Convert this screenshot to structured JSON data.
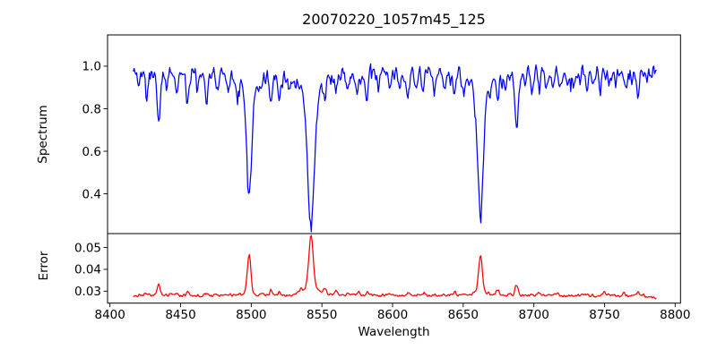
{
  "chart_data": {
    "type": "line",
    "title": "20070220_1057m45_125",
    "xlabel": "Wavelength",
    "grid": false,
    "legend": "none",
    "xlim": [
      8398.3,
      8803.8
    ],
    "x_tick_values": [
      8400,
      8450,
      8500,
      8550,
      8600,
      8650,
      8700,
      8750,
      8800
    ],
    "x_tick_labels": [
      "8400",
      "8450",
      "8500",
      "8550",
      "8600",
      "8650",
      "8700",
      "8750",
      "8800"
    ],
    "x_range_data": [
      8416.5,
      8787
    ],
    "x_step": 0.6,
    "panels": [
      {
        "name": "spectrum",
        "ylabel": "Spectrum",
        "color": "#0000ff",
        "ylim": [
          0.213,
          1.147
        ],
        "ytick_values": [
          1.0,
          0.8,
          0.6,
          0.4
        ],
        "ytick_labels": [
          "1.0",
          "0.8",
          "0.6",
          "0.4"
        ],
        "base": 0.975,
        "dir": -1,
        "noise_amp": 0.055,
        "spike_p": 0.06,
        "spike_a": 0.05,
        "seed": 11,
        "features": [
          {
            "c": 8420.5,
            "a": 0.05,
            "w": 0.8
          },
          {
            "c": 8426,
            "a": 0.12,
            "w": 1.0
          },
          {
            "c": 8434.6,
            "a": 0.22,
            "w": 1.2
          },
          {
            "c": 8440,
            "a": 0.07,
            "w": 0.9
          },
          {
            "c": 8447,
            "a": 0.1,
            "w": 1.0
          },
          {
            "c": 8455,
            "a": 0.13,
            "w": 1.1
          },
          {
            "c": 8462,
            "a": 0.08,
            "w": 0.9
          },
          {
            "c": 8468.5,
            "a": 0.11,
            "w": 1.0
          },
          {
            "c": 8476,
            "a": 0.07,
            "w": 0.9
          },
          {
            "c": 8484,
            "a": 0.06,
            "w": 0.8
          },
          {
            "c": 8490.5,
            "a": 0.06,
            "w": 0.8
          },
          {
            "c": 8498.5,
            "a": 0.445,
            "w": 1.7,
            "ba": 0.115,
            "bw": 5.5
          },
          {
            "c": 8507,
            "a": 0.05,
            "w": 0.8
          },
          {
            "c": 8514,
            "a": 0.125,
            "w": 1.0
          },
          {
            "c": 8519.5,
            "a": 0.08,
            "w": 0.9
          },
          {
            "c": 8527,
            "a": 0.07,
            "w": 0.9
          },
          {
            "c": 8542.3,
            "a": 0.565,
            "w": 2.3,
            "ba": 0.145,
            "bw": 7.5
          },
          {
            "c": 8552,
            "a": 0.07,
            "w": 0.9
          },
          {
            "c": 8560,
            "a": 0.06,
            "w": 0.9
          },
          {
            "c": 8568,
            "a": 0.07,
            "w": 0.9
          },
          {
            "c": 8575.5,
            "a": 0.08,
            "w": 0.9
          },
          {
            "c": 8581.5,
            "a": 0.11,
            "w": 1.0
          },
          {
            "c": 8590,
            "a": 0.07,
            "w": 0.9
          },
          {
            "c": 8598,
            "a": 0.09,
            "w": 1.0
          },
          {
            "c": 8605,
            "a": 0.07,
            "w": 0.9
          },
          {
            "c": 8610.5,
            "a": 0.13,
            "w": 1.0
          },
          {
            "c": 8617,
            "a": 0.07,
            "w": 0.9
          },
          {
            "c": 8621.5,
            "a": 0.11,
            "w": 1.0
          },
          {
            "c": 8630,
            "a": 0.06,
            "w": 0.9
          },
          {
            "c": 8637,
            "a": 0.07,
            "w": 0.9
          },
          {
            "c": 8644,
            "a": 0.09,
            "w": 1.0
          },
          {
            "c": 8650.5,
            "a": 0.08,
            "w": 0.9
          },
          {
            "c": 8662.2,
            "a": 0.535,
            "w": 2.0,
            "ba": 0.125,
            "bw": 6.0
          },
          {
            "c": 8669,
            "a": 0.06,
            "w": 0.8
          },
          {
            "c": 8674.5,
            "a": 0.09,
            "w": 0.9
          },
          {
            "c": 8680,
            "a": 0.07,
            "w": 0.9
          },
          {
            "c": 8687.8,
            "a": 0.265,
            "w": 1.3
          },
          {
            "c": 8694,
            "a": 0.06,
            "w": 0.9
          },
          {
            "c": 8698.5,
            "a": 0.08,
            "w": 0.9
          },
          {
            "c": 8703.5,
            "a": 0.06,
            "w": 0.9
          },
          {
            "c": 8709,
            "a": 0.09,
            "w": 0.9
          },
          {
            "c": 8713.5,
            "a": 0.06,
            "w": 0.8
          },
          {
            "c": 8718.5,
            "a": 0.08,
            "w": 0.9
          },
          {
            "c": 8724,
            "a": 0.06,
            "w": 0.9
          },
          {
            "c": 8728,
            "a": 0.07,
            "w": 0.9
          },
          {
            "c": 8733,
            "a": 0.06,
            "w": 0.8
          },
          {
            "c": 8737.5,
            "a": 0.09,
            "w": 0.9
          },
          {
            "c": 8743,
            "a": 0.06,
            "w": 0.9
          },
          {
            "c": 8747,
            "a": 0.08,
            "w": 0.9
          },
          {
            "c": 8753,
            "a": 0.06,
            "w": 0.9
          },
          {
            "c": 8758,
            "a": 0.06,
            "w": 0.9
          },
          {
            "c": 8765,
            "a": 0.07,
            "w": 0.9
          },
          {
            "c": 8769.5,
            "a": 0.06,
            "w": 0.8
          },
          {
            "c": 8773.5,
            "a": 0.12,
            "w": 1.0
          },
          {
            "c": 8780,
            "a": 0.06,
            "w": 0.9
          }
        ]
      },
      {
        "name": "error",
        "ylabel": "Error",
        "color": "#ff0000",
        "ylim": [
          0.0245,
          0.0564
        ],
        "ytick_values": [
          0.05,
          0.04,
          0.03
        ],
        "ytick_labels": [
          "0.05",
          "0.04",
          "0.03"
        ],
        "base": 0.028,
        "dir": 1,
        "noise_amp": 0.0012,
        "spike_p": 0,
        "spike_a": 0,
        "seed": 3,
        "ramp": {
          "x0": 8776,
          "dv": -0.0013
        },
        "features": [
          {
            "c": 8426,
            "a": 0.0012,
            "w": 1.0
          },
          {
            "c": 8434.6,
            "a": 0.0046,
            "w": 1.1
          },
          {
            "c": 8447,
            "a": 0.0012,
            "w": 0.9
          },
          {
            "c": 8455,
            "a": 0.0018,
            "w": 0.9
          },
          {
            "c": 8468.5,
            "a": 0.0013,
            "w": 0.9
          },
          {
            "c": 8498.5,
            "a": 0.0178,
            "w": 1.2,
            "ba": 0.0012,
            "bw": 4.0
          },
          {
            "c": 8514,
            "a": 0.0022,
            "w": 0.9
          },
          {
            "c": 8520,
            "a": 0.0015,
            "w": 0.9
          },
          {
            "c": 8535,
            "a": 0.0012,
            "w": 0.9
          },
          {
            "c": 8542.3,
            "a": 0.0215,
            "w": 1.5,
            "ba": 0.006,
            "bw": 4.5
          },
          {
            "c": 8552,
            "a": 0.0022,
            "w": 0.9
          },
          {
            "c": 8560,
            "a": 0.0017,
            "w": 0.9
          },
          {
            "c": 8568,
            "a": 0.0012,
            "w": 0.9
          },
          {
            "c": 8576,
            "a": 0.0017,
            "w": 0.9
          },
          {
            "c": 8582,
            "a": 0.0013,
            "w": 0.9
          },
          {
            "c": 8598,
            "a": 0.0011,
            "w": 0.9
          },
          {
            "c": 8611,
            "a": 0.0014,
            "w": 0.9
          },
          {
            "c": 8622,
            "a": 0.0012,
            "w": 0.9
          },
          {
            "c": 8644,
            "a": 0.0011,
            "w": 0.9
          },
          {
            "c": 8662.2,
            "a": 0.0158,
            "w": 1.3,
            "ba": 0.003,
            "bw": 4.0
          },
          {
            "c": 8674.5,
            "a": 0.0028,
            "w": 0.9
          },
          {
            "c": 8687.8,
            "a": 0.0048,
            "w": 1.1
          },
          {
            "c": 8703,
            "a": 0.001,
            "w": 0.9
          },
          {
            "c": 8717,
            "a": 0.0012,
            "w": 0.9
          },
          {
            "c": 8736,
            "a": 0.0012,
            "w": 0.9
          },
          {
            "c": 8750,
            "a": 0.0014,
            "w": 0.9
          },
          {
            "c": 8764,
            "a": 0.001,
            "w": 0.9
          },
          {
            "c": 8773.5,
            "a": 0.0019,
            "w": 0.9
          }
        ]
      }
    ],
    "notable_absorption_lines": [
      {
        "wavelength": 8498.5,
        "min_flux": 0.41,
        "note": "deep line"
      },
      {
        "wavelength": 8542.3,
        "min_flux": 0.26,
        "note": "deepest line"
      },
      {
        "wavelength": 8662.2,
        "min_flux": 0.31,
        "note": "deep line"
      },
      {
        "wavelength": 8687.8,
        "min_flux": 0.71,
        "note": "narrow line"
      }
    ],
    "error_peaks_summary": [
      {
        "wavelength": 8498.5,
        "max_error": 0.046
      },
      {
        "wavelength": 8542.3,
        "max_error": 0.0555
      },
      {
        "wavelength": 8662.2,
        "max_error": 0.047
      },
      {
        "wavelength": 8687.8,
        "max_error": 0.0327
      }
    ],
    "error_baseline": 0.028
  },
  "colors": {
    "axis": "#000000",
    "background": "#ffffff",
    "spectrum_line": "#0000ff",
    "error_line": "#ff0000"
  }
}
